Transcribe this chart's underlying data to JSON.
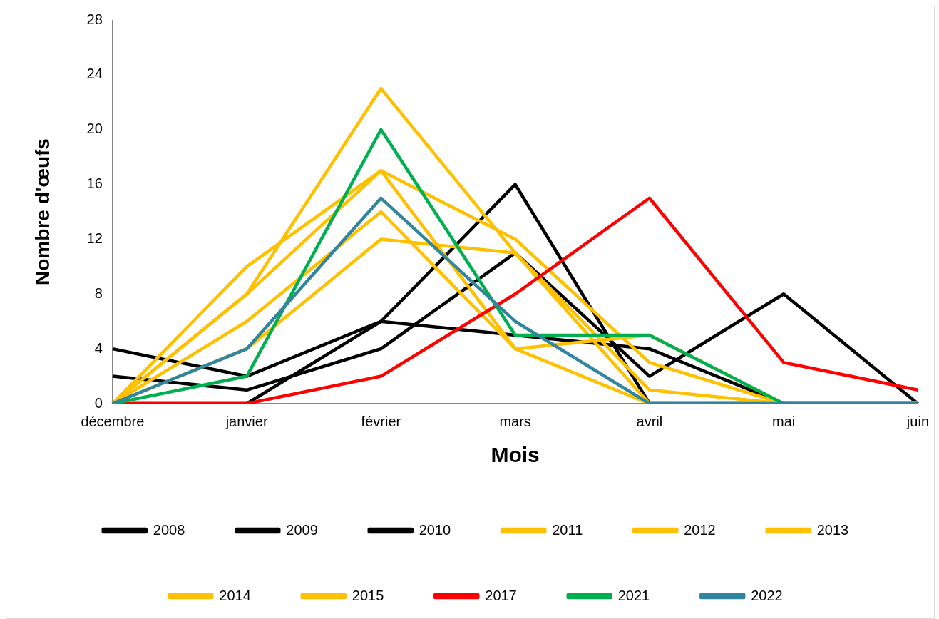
{
  "chart_data": {
    "type": "line",
    "xlabel": "Mois",
    "ylabel": "Nombre d'œufs",
    "categories": [
      "décembre",
      "janvier",
      "février",
      "mars",
      "avril",
      "mai",
      "juin"
    ],
    "ylim": [
      0,
      28
    ],
    "yticks": [
      0,
      4,
      8,
      12,
      16,
      20,
      24,
      28
    ],
    "grid": false,
    "legend": "bottom",
    "marker": "none",
    "line_style": "solid",
    "series": [
      {
        "name": "2008",
        "color": "#000000",
        "values": [
          4,
          2,
          6,
          5,
          4,
          0,
          0
        ]
      },
      {
        "name": "2009",
        "color": "#000000",
        "values": [
          2,
          1,
          4,
          11,
          2,
          8,
          0
        ]
      },
      {
        "name": "2010",
        "color": "#000000",
        "values": [
          0,
          0,
          6,
          16,
          0,
          0,
          0
        ]
      },
      {
        "name": "2011",
        "color": "#ffc000",
        "values": [
          0,
          10,
          17,
          12,
          3,
          0,
          0
        ]
      },
      {
        "name": "2012",
        "color": "#ffc000",
        "values": [
          0,
          8,
          23,
          11,
          1,
          0,
          0
        ]
      },
      {
        "name": "2013",
        "color": "#ffc000",
        "values": [
          0,
          8,
          17,
          4,
          5,
          0,
          0
        ]
      },
      {
        "name": "2014",
        "color": "#ffc000",
        "values": [
          0,
          6,
          14,
          4,
          0,
          0,
          0
        ]
      },
      {
        "name": "2015",
        "color": "#ffc000",
        "values": [
          0,
          4,
          12,
          11,
          0,
          0,
          0
        ]
      },
      {
        "name": "2017",
        "color": "#ff0000",
        "values": [
          0,
          0,
          2,
          8,
          15,
          3,
          1
        ]
      },
      {
        "name": "2021",
        "color": "#00b050",
        "values": [
          0,
          2,
          20,
          5,
          5,
          0,
          0
        ]
      },
      {
        "name": "2022",
        "color": "#31859c",
        "values": [
          0,
          4,
          15,
          6,
          0,
          0,
          0
        ]
      }
    ]
  }
}
